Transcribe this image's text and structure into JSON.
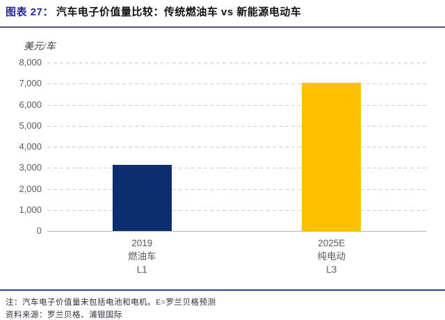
{
  "figure": {
    "label": "图表 27：",
    "title": "汽车电子价值量比较：传统燃油车 vs 新能源电动车"
  },
  "chart_data": {
    "type": "bar",
    "title": "汽车电子价值量比较：传统燃油车 vs 新能源电动车",
    "unit_label": "美元/车",
    "categories": [
      {
        "lines": [
          "2019",
          "燃油车",
          "L1"
        ]
      },
      {
        "lines": [
          "2025E",
          "纯电动",
          "L3"
        ]
      }
    ],
    "values": [
      3150,
      7050
    ],
    "bar_colors": [
      "#0c2e6e",
      "#ffc000"
    ],
    "ylim": [
      0,
      8000
    ],
    "ytick_step": 1000,
    "ytick_labels": [
      "8,000",
      "7,000",
      "6,000",
      "5,000",
      "4,000",
      "3,000",
      "2,000",
      "1,000",
      "0"
    ],
    "grid": "horizontal-dashed",
    "legend": "none"
  },
  "footnotes": {
    "note": "注：汽车电子价值量未包括电池和电机。E=罗兰贝格预测",
    "source": "资料来源：罗兰贝格、浦银国际"
  },
  "colors": {
    "title_label": "#27279b",
    "title_text": "#111111",
    "bar_fuel": "#0c2e6e",
    "bar_ev": "#ffc000",
    "axis_text": "#595959",
    "rule_bottom": "#26418c"
  }
}
